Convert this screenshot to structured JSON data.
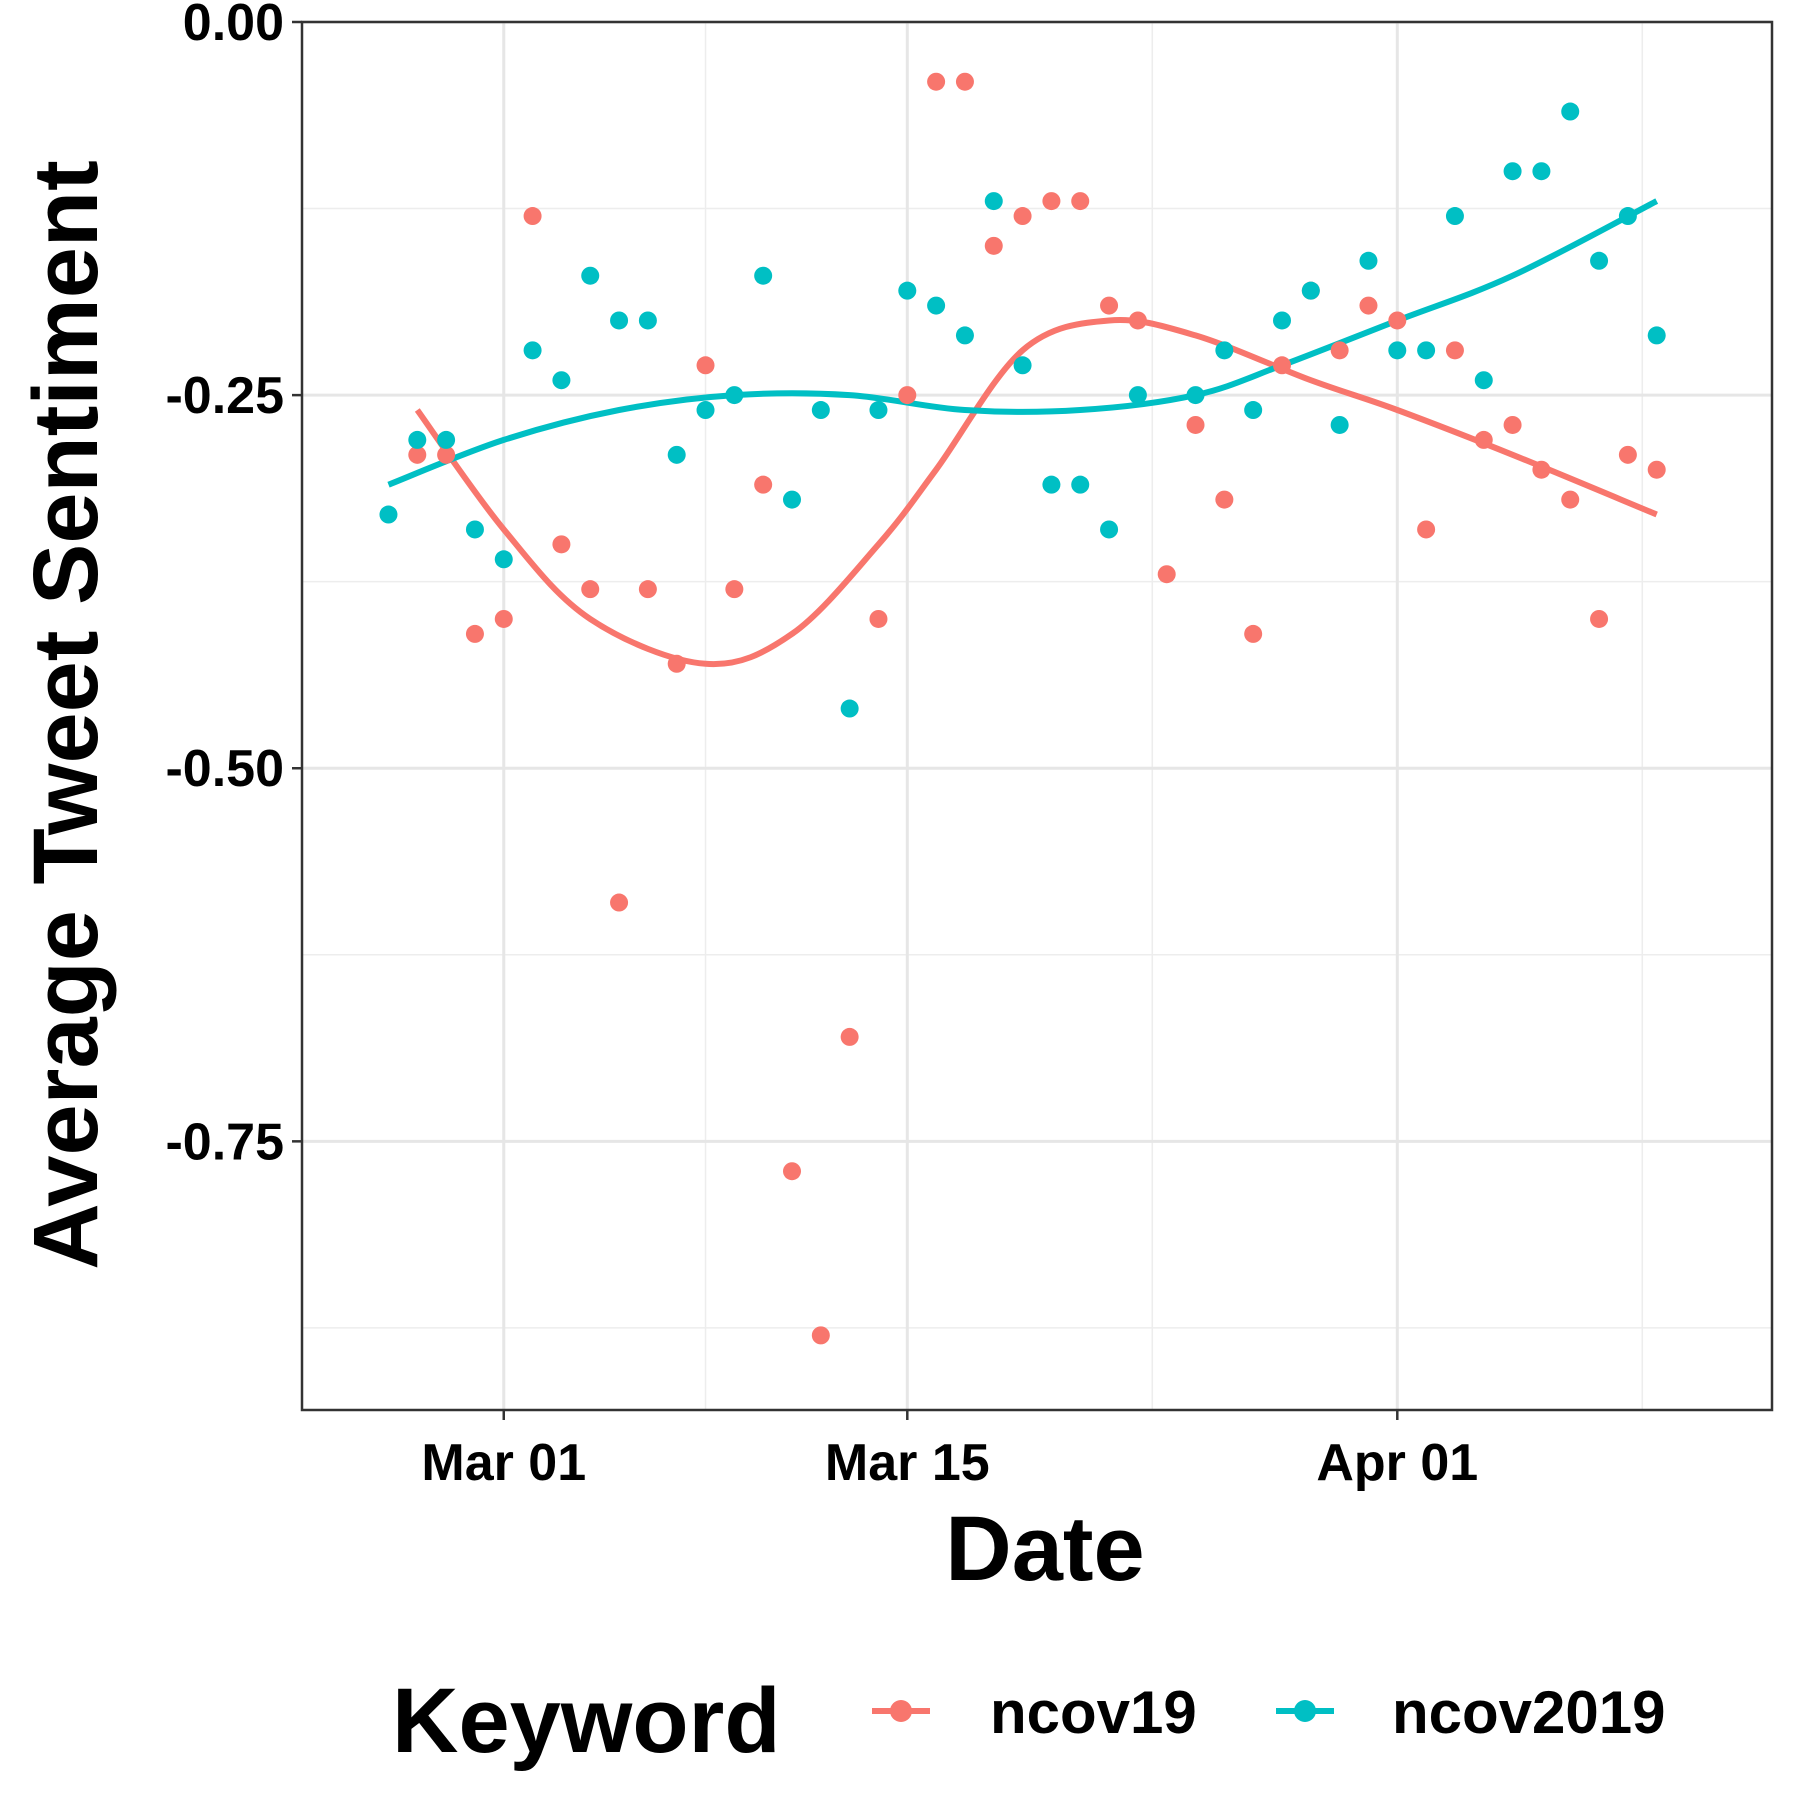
{
  "chart_data": {
    "type": "scatter",
    "title": "",
    "xlabel": "Date",
    "ylabel": "Average Tweet Sentiment",
    "x_type": "date",
    "xlim": [
      "2020-02-23",
      "2020-04-14"
    ],
    "ylim": [
      -0.93,
      0.0
    ],
    "x_ticks": [
      {
        "date": "2020-03-01",
        "label": "Mar 01"
      },
      {
        "date": "2020-03-15",
        "label": "Mar 15"
      },
      {
        "date": "2020-04-01",
        "label": "Apr 01"
      }
    ],
    "y_ticks": [
      {
        "value": 0.0,
        "label": "0.00"
      },
      {
        "value": -0.25,
        "label": "-0.25"
      },
      {
        "value": -0.5,
        "label": "-0.50"
      },
      {
        "value": -0.75,
        "label": "-0.75"
      }
    ],
    "grid": true,
    "legend": {
      "title": "Keyword",
      "position": "bottom"
    },
    "series": [
      {
        "name": "ncov19",
        "color": "#F8766D",
        "points": [
          [
            "2020-02-27",
            -0.29
          ],
          [
            "2020-02-28",
            -0.29
          ],
          [
            "2020-02-29",
            -0.41
          ],
          [
            "2020-03-01",
            -0.4
          ],
          [
            "2020-03-02",
            -0.13
          ],
          [
            "2020-03-03",
            -0.35
          ],
          [
            "2020-03-04",
            -0.38
          ],
          [
            "2020-03-05",
            -0.59
          ],
          [
            "2020-03-06",
            -0.38
          ],
          [
            "2020-03-07",
            -0.43
          ],
          [
            "2020-03-08",
            -0.23
          ],
          [
            "2020-03-09",
            -0.38
          ],
          [
            "2020-03-10",
            -0.31
          ],
          [
            "2020-03-11",
            -0.77
          ],
          [
            "2020-03-12",
            -0.88
          ],
          [
            "2020-03-13",
            -0.68
          ],
          [
            "2020-03-14",
            -0.4
          ],
          [
            "2020-03-15",
            -0.25
          ],
          [
            "2020-03-16",
            -0.04
          ],
          [
            "2020-03-17",
            -0.04
          ],
          [
            "2020-03-18",
            -0.15
          ],
          [
            "2020-03-19",
            -0.13
          ],
          [
            "2020-03-20",
            -0.12
          ],
          [
            "2020-03-21",
            -0.12
          ],
          [
            "2020-03-22",
            -0.19
          ],
          [
            "2020-03-23",
            -0.2
          ],
          [
            "2020-03-24",
            -0.37
          ],
          [
            "2020-03-25",
            -0.27
          ],
          [
            "2020-03-26",
            -0.32
          ],
          [
            "2020-03-27",
            -0.41
          ],
          [
            "2020-03-28",
            -0.23
          ],
          [
            "2020-03-29",
            -0.18
          ],
          [
            "2020-03-30",
            -0.22
          ],
          [
            "2020-03-31",
            -0.19
          ],
          [
            "2020-04-01",
            -0.2
          ],
          [
            "2020-04-02",
            -0.34
          ],
          [
            "2020-04-03",
            -0.22
          ],
          [
            "2020-04-04",
            -0.28
          ],
          [
            "2020-04-05",
            -0.27
          ],
          [
            "2020-04-06",
            -0.3
          ],
          [
            "2020-04-07",
            -0.32
          ],
          [
            "2020-04-08",
            -0.4
          ],
          [
            "2020-04-09",
            -0.29
          ],
          [
            "2020-04-10",
            -0.3
          ]
        ],
        "smooth": [
          [
            "2020-02-27",
            -0.26
          ],
          [
            "2020-03-01",
            -0.34
          ],
          [
            "2020-03-04",
            -0.4
          ],
          [
            "2020-03-08",
            -0.43
          ],
          [
            "2020-03-11",
            -0.41
          ],
          [
            "2020-03-14",
            -0.35
          ],
          [
            "2020-03-16",
            -0.3
          ],
          [
            "2020-03-19",
            -0.22
          ],
          [
            "2020-03-22",
            -0.2
          ],
          [
            "2020-03-25",
            -0.21
          ],
          [
            "2020-03-29",
            -0.24
          ],
          [
            "2020-04-01",
            -0.26
          ],
          [
            "2020-04-05",
            -0.29
          ],
          [
            "2020-04-10",
            -0.33
          ]
        ]
      },
      {
        "name": "ncov2019",
        "color": "#00BFC4",
        "points": [
          [
            "2020-02-26",
            -0.33
          ],
          [
            "2020-02-27",
            -0.28
          ],
          [
            "2020-02-28",
            -0.28
          ],
          [
            "2020-02-29",
            -0.34
          ],
          [
            "2020-03-01",
            -0.36
          ],
          [
            "2020-03-02",
            -0.22
          ],
          [
            "2020-03-03",
            -0.24
          ],
          [
            "2020-03-04",
            -0.17
          ],
          [
            "2020-03-05",
            -0.2
          ],
          [
            "2020-03-06",
            -0.2
          ],
          [
            "2020-03-07",
            -0.29
          ],
          [
            "2020-03-08",
            -0.26
          ],
          [
            "2020-03-09",
            -0.25
          ],
          [
            "2020-03-10",
            -0.17
          ],
          [
            "2020-03-11",
            -0.32
          ],
          [
            "2020-03-12",
            -0.26
          ],
          [
            "2020-03-13",
            -0.46
          ],
          [
            "2020-03-14",
            -0.26
          ],
          [
            "2020-03-15",
            -0.18
          ],
          [
            "2020-03-16",
            -0.19
          ],
          [
            "2020-03-17",
            -0.21
          ],
          [
            "2020-03-18",
            -0.12
          ],
          [
            "2020-03-19",
            -0.23
          ],
          [
            "2020-03-20",
            -0.31
          ],
          [
            "2020-03-21",
            -0.31
          ],
          [
            "2020-03-22",
            -0.34
          ],
          [
            "2020-03-23",
            -0.25
          ],
          [
            "2020-03-25",
            -0.25
          ],
          [
            "2020-03-26",
            -0.22
          ],
          [
            "2020-03-27",
            -0.26
          ],
          [
            "2020-03-28",
            -0.2
          ],
          [
            "2020-03-29",
            -0.18
          ],
          [
            "2020-03-30",
            -0.27
          ],
          [
            "2020-03-31",
            -0.16
          ],
          [
            "2020-04-01",
            -0.22
          ],
          [
            "2020-04-02",
            -0.22
          ],
          [
            "2020-04-03",
            -0.13
          ],
          [
            "2020-04-04",
            -0.24
          ],
          [
            "2020-04-05",
            -0.1
          ],
          [
            "2020-04-06",
            -0.1
          ],
          [
            "2020-04-07",
            -0.06
          ],
          [
            "2020-04-08",
            -0.16
          ],
          [
            "2020-04-09",
            -0.13
          ],
          [
            "2020-04-10",
            -0.21
          ]
        ],
        "smooth": [
          [
            "2020-02-26",
            -0.31
          ],
          [
            "2020-03-01",
            -0.28
          ],
          [
            "2020-03-05",
            -0.26
          ],
          [
            "2020-03-09",
            -0.25
          ],
          [
            "2020-03-13",
            -0.25
          ],
          [
            "2020-03-17",
            -0.26
          ],
          [
            "2020-03-21",
            -0.26
          ],
          [
            "2020-03-25",
            -0.25
          ],
          [
            "2020-03-28",
            -0.23
          ],
          [
            "2020-04-01",
            -0.2
          ],
          [
            "2020-04-05",
            -0.17
          ],
          [
            "2020-04-10",
            -0.12
          ]
        ]
      }
    ]
  }
}
